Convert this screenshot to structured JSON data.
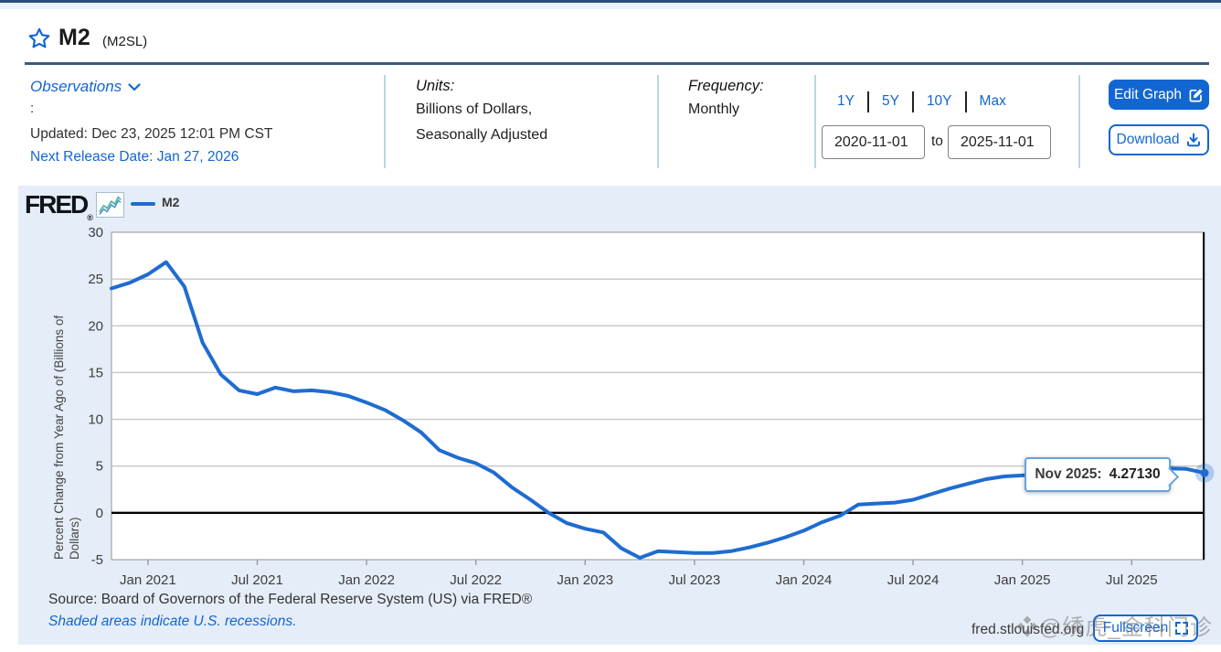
{
  "header": {
    "title": "M2",
    "series_id": "(M2SL)"
  },
  "meta": {
    "observations_label": "Observations",
    "colon": ":",
    "updated": "Updated: Dec 23, 2025 12:01 PM CST",
    "next_release": "Next Release Date: Jan 27, 2026",
    "units_label": "Units:",
    "units_line1": "Billions of Dollars,",
    "units_line2": "Seasonally Adjusted",
    "frequency_label": "Frequency:",
    "frequency_value": "Monthly"
  },
  "range": {
    "presets": [
      "1Y",
      "5Y",
      "10Y",
      "Max"
    ],
    "start_date": "2020-11-01",
    "to_label": "to",
    "end_date": "2025-11-01"
  },
  "actions": {
    "edit_graph": "Edit Graph",
    "download": "Download",
    "fullscreen": "Fullscreen"
  },
  "chart": {
    "brand": "FRED",
    "brand_reg": "®",
    "legend_label": "M2",
    "tooltip": {
      "label": "Nov 2025:",
      "value": "4.27130"
    },
    "source_line": "Source: Board of Governors of the Federal Reserve System (US) via FRED®",
    "recession_note": "Shaded areas indicate U.S. recessions.",
    "site_url": "fred.stlouisfed.org"
  },
  "watermark": "❖@绣虎_金科门诊",
  "chart_data": {
    "type": "line",
    "title": "M2",
    "ylabel": "Percent Change from Year Ago of (Billions of Dollars)",
    "ylabel_line1": "Percent Change from Year Ago of (Billions of",
    "ylabel_line2": "Dollars)",
    "x_start": "2020-11",
    "x_end": "2025-11",
    "x_months_total": 60,
    "x_tick_labels": [
      "Jan 2021",
      "Jul 2021",
      "Jan 2022",
      "Jul 2022",
      "Jan 2023",
      "Jul 2023",
      "Jan 2024",
      "Jul 2024",
      "Jan 2025",
      "Jul 2025"
    ],
    "x_tick_month_index": [
      2,
      8,
      14,
      20,
      26,
      32,
      38,
      44,
      50,
      56
    ],
    "y_ticks": [
      30,
      25,
      20,
      15,
      10,
      5,
      0,
      -5
    ],
    "ylim": [
      -5,
      30
    ],
    "grid": true,
    "legend_position": "top-left",
    "series": [
      {
        "name": "M2",
        "frequency": "monthly",
        "values": [
          24.0,
          24.6,
          25.5,
          26.8,
          24.2,
          18.2,
          14.8,
          13.1,
          12.7,
          13.4,
          13.0,
          13.1,
          12.9,
          12.5,
          11.8,
          11.0,
          9.9,
          8.6,
          6.7,
          5.9,
          5.3,
          4.3,
          2.7,
          1.4,
          0.0,
          -1.1,
          -1.7,
          -2.1,
          -3.8,
          -4.8,
          -4.1,
          -4.2,
          -4.3,
          -4.3,
          -4.1,
          -3.7,
          -3.2,
          -2.6,
          -1.9,
          -1.0,
          -0.3,
          0.9,
          1.0,
          1.1,
          1.4,
          2.0,
          2.6,
          3.1,
          3.6,
          3.9,
          4.0,
          4.1,
          4.1,
          4.2,
          4.2,
          4.3,
          4.5,
          4.7,
          4.75,
          4.7,
          4.2713
        ]
      }
    ],
    "last_point": {
      "label": "Nov 2025",
      "value": 4.2713
    },
    "colors": {
      "line": "#1f6cd1",
      "grid": "#c6c6c6",
      "zero_line": "#000000",
      "frame": "#949494",
      "crosshair": "#111111",
      "link_blue": "#1266d2",
      "panel_bg": "#e5edf8"
    }
  }
}
